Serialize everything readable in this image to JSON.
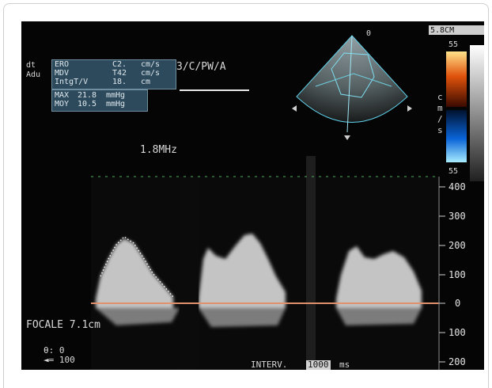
{
  "header": {
    "small_labels": [
      "dt",
      "Adu"
    ],
    "measurements": [
      {
        "label": "ERO",
        "value": "C2.",
        "unit": "cm/s"
      },
      {
        "label": "MDV",
        "value": "T42",
        "unit": "cm/s"
      },
      {
        "label": "IntgT/V",
        "value": "18.",
        "unit": "cm"
      }
    ],
    "measurements2": [
      {
        "label": "MAX",
        "value": "21.8",
        "unit": "mmHg"
      },
      {
        "label": "MOY",
        "value": "10.5",
        "unit": "mmHg"
      }
    ],
    "mode_text": "3/C/PW/A",
    "frequency": "1.8MHz",
    "top_right_tag": "5.8CM",
    "depth_marker": "0"
  },
  "color_scale": {
    "top": "55",
    "bottom": "55",
    "unit_letters": [
      "c",
      "m",
      "/",
      "s"
    ]
  },
  "velocity_scale": {
    "labels": [
      "400",
      "300",
      "200",
      "100",
      "0",
      "100",
      "200"
    ]
  },
  "bottom": {
    "focale": "FOCALE 7.1cm",
    "angle": "θ: 0",
    "angle2": "◄= 100",
    "interval_label": "INTERV.",
    "interval_value": "1000",
    "interval_unit": "ms"
  },
  "colors": {
    "background": "#050505",
    "panel": "#2c4a5c",
    "baseline": "#e0906a",
    "grid": "#4fae5c"
  }
}
